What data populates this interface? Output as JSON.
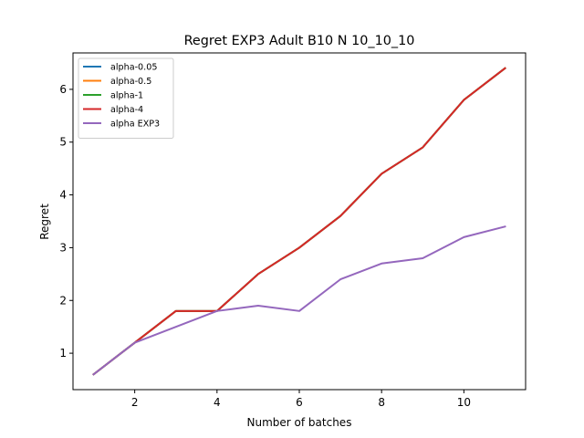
{
  "chart_data": {
    "type": "line",
    "title": "Regret EXP3 Adult B10 N 10_10_10",
    "xlabel": "Number of batches",
    "ylabel": "Regret",
    "x": [
      1,
      2,
      3,
      4,
      5,
      6,
      7,
      8,
      9,
      10,
      11
    ],
    "xlim": [
      0.5,
      11.5
    ],
    "ylim": [
      0.31,
      6.69
    ],
    "xticks": [
      2,
      4,
      6,
      8,
      10
    ],
    "yticks": [
      1,
      2,
      3,
      4,
      5,
      6
    ],
    "grid": false,
    "legend_position": "top-left",
    "series": [
      {
        "name": "alpha-0.05",
        "color": "#1f77b4",
        "values": [
          0.6,
          1.2,
          1.8,
          1.8,
          2.5,
          3.0,
          3.6,
          4.4,
          4.9,
          5.8,
          6.4
        ]
      },
      {
        "name": "alpha-0.5",
        "color": "#ff7f0e",
        "values": [
          0.6,
          1.2,
          1.8,
          1.8,
          2.5,
          3.0,
          3.6,
          4.4,
          4.9,
          5.8,
          6.4
        ]
      },
      {
        "name": "alpha-1",
        "color": "#2ca02c",
        "values": [
          0.6,
          1.2,
          1.8,
          1.8,
          2.5,
          3.0,
          3.6,
          4.4,
          4.9,
          5.8,
          6.4
        ]
      },
      {
        "name": "alpha-4",
        "color": "#d62728",
        "values": [
          0.6,
          1.2,
          1.8,
          1.8,
          2.5,
          3.0,
          3.6,
          4.4,
          4.9,
          5.8,
          6.4
        ]
      },
      {
        "name": "alpha EXP3",
        "color": "#9467bd",
        "values": [
          0.6,
          1.2,
          1.5,
          1.8,
          1.9,
          1.8,
          2.4,
          2.7,
          2.8,
          3.2,
          3.4
        ]
      }
    ]
  }
}
